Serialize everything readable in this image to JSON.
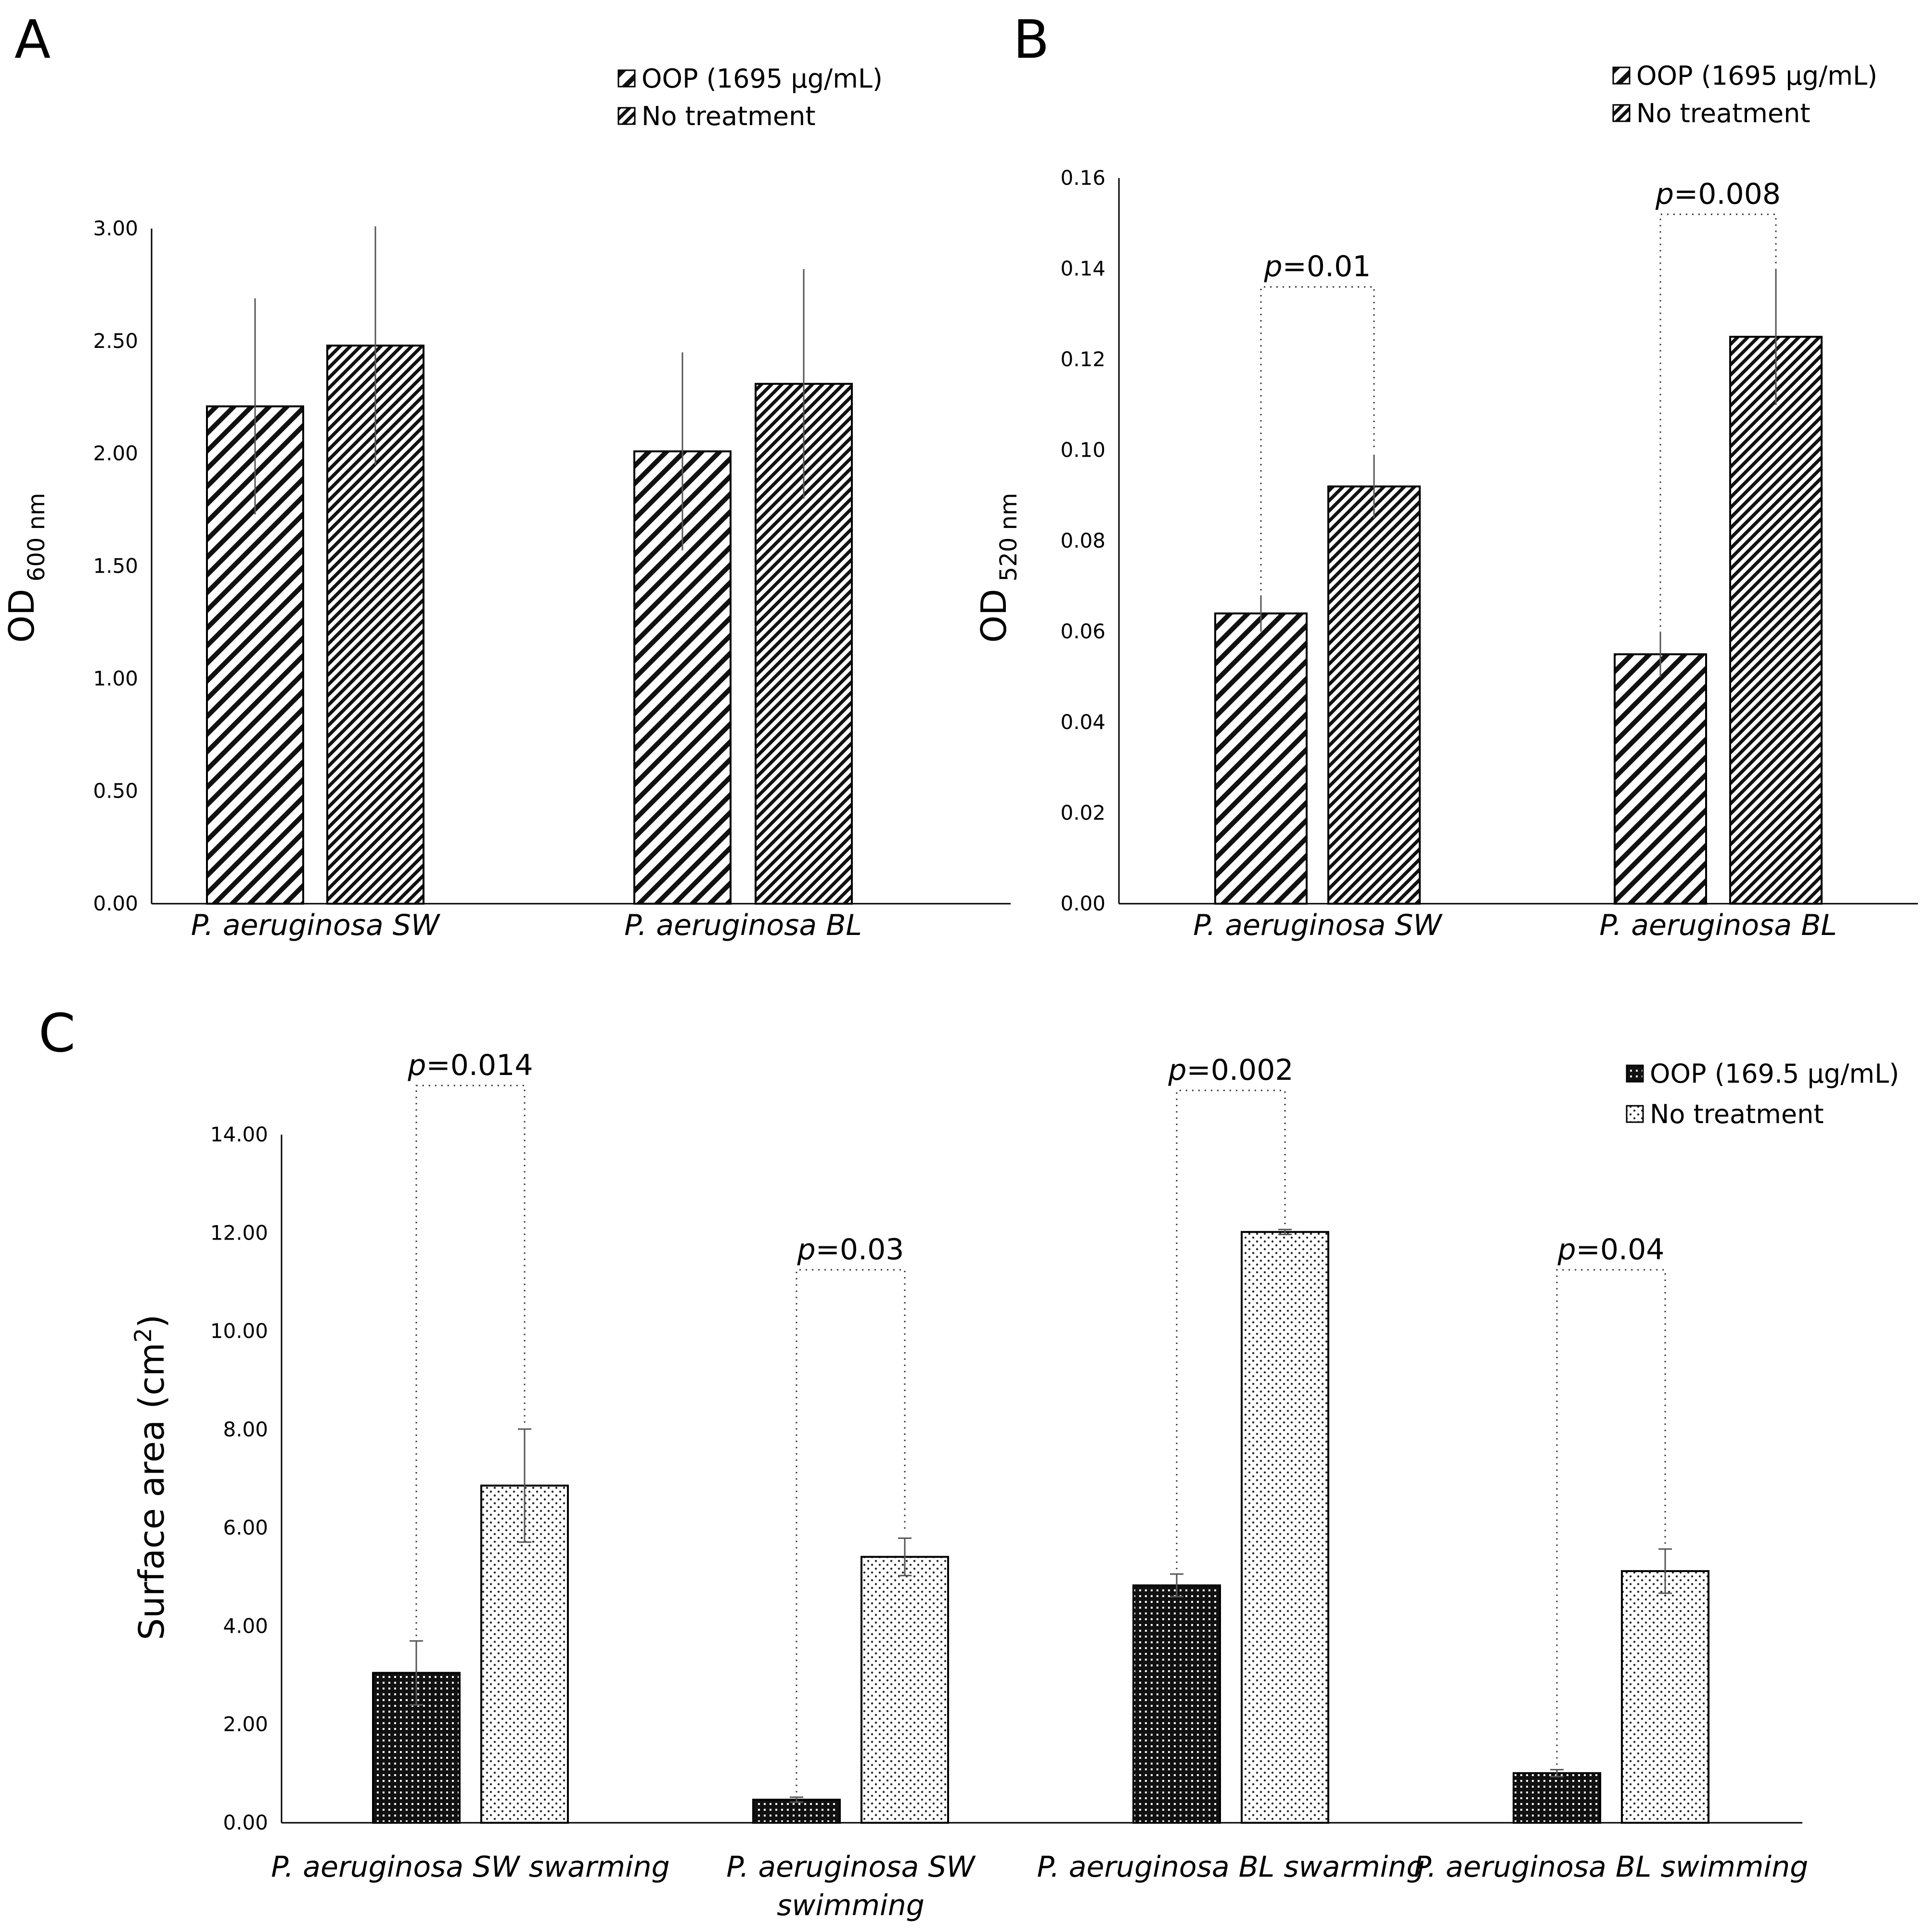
{
  "chart_data": [
    {
      "panel": "A",
      "type": "bar",
      "ylabel": {
        "main": "OD",
        "sub": "600 nm"
      },
      "ylim": [
        0,
        3
      ],
      "yticks": [
        "0.00",
        "0.50",
        "1.00",
        "1.50",
        "2.00",
        "2.50",
        "3.00"
      ],
      "categories": [
        "P. aeruginosa SW",
        "P. aeruginosa BL"
      ],
      "series": [
        {
          "name": "OOP (1695 µg/mL)",
          "values": [
            2.21,
            2.01
          ],
          "errors": [
            0.48,
            0.44
          ]
        },
        {
          "name": "No treatment",
          "values": [
            2.48,
            2.31
          ],
          "errors": [
            0.53,
            0.51
          ]
        }
      ],
      "pvalues": [],
      "grid": false,
      "legend": "top-right"
    },
    {
      "panel": "B",
      "type": "bar",
      "ylabel": {
        "main": "OD",
        "sub": "520 nm"
      },
      "ylim": [
        0,
        0.16
      ],
      "yticks": [
        "0.00",
        "0.02",
        "0.04",
        "0.06",
        "0.08",
        "0.10",
        "0.12",
        "0.14",
        "0.16"
      ],
      "categories": [
        "P. aeruginosa SW",
        "P. aeruginosa BL"
      ],
      "series": [
        {
          "name": "OOP (1695 µg/mL)",
          "values": [
            0.064,
            0.055
          ],
          "errors": [
            0.004,
            0.005
          ]
        },
        {
          "name": "No treatment",
          "values": [
            0.092,
            0.125
          ],
          "errors": [
            0.007,
            0.015
          ]
        }
      ],
      "pvalues": [
        {
          "italic": "p",
          "text": "=0.01",
          "topValue": 0.136
        },
        {
          "italic": "p",
          "text": "=0.008",
          "topValue": 0.152
        }
      ],
      "grid": false,
      "legend": "top-right"
    },
    {
      "panel": "C",
      "type": "bar",
      "ylabel": {
        "main": "Surface area (cm",
        "sup": "2",
        "end": ")"
      },
      "ylim": [
        0,
        14
      ],
      "yticks": [
        "0.00",
        "2.00",
        "4.00",
        "6.00",
        "8.00",
        "10.00",
        "12.00",
        "14.00"
      ],
      "categories": [
        [
          "P. aeruginosa SW swarming"
        ],
        [
          "P. aeruginosa SW",
          "swimming"
        ],
        [
          "P. aeruginosa BL swarming"
        ],
        [
          "P. aeruginosa BL swimming"
        ]
      ],
      "series": [
        {
          "name": "OOP (169.5 µg/mL)",
          "values": [
            3.05,
            0.47,
            4.83,
            1.01
          ],
          "errors": [
            0.65,
            0.05,
            0.23,
            0.07
          ]
        },
        {
          "name": "No treatment",
          "values": [
            6.86,
            5.41,
            12.02,
            5.12
          ],
          "errors": [
            1.15,
            0.38,
            0.05,
            0.45
          ]
        }
      ],
      "pvalues": [
        {
          "italic": "p",
          "text": "=0.014",
          "topValue": 15.0
        },
        {
          "italic": "p",
          "text": "=0.03",
          "topValue": 11.25
        },
        {
          "italic": "p",
          "text": "=0.002",
          "topValue": 14.9
        },
        {
          "italic": "p",
          "text": "=0.04",
          "topValue": 11.25
        }
      ],
      "grid": false,
      "legend": "top-right"
    }
  ]
}
